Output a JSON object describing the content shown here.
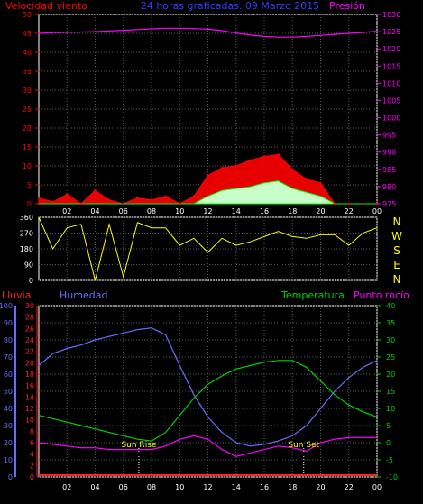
{
  "chart_data": [
    {
      "type": "line",
      "title": "24 horas graficadas. 09 Marzo 2015",
      "left_axis_label": "Velocidad viento",
      "right_axis_label": "Presión",
      "left_ticks": [
        "0",
        "5",
        "10",
        "15",
        "20",
        "25",
        "30",
        "35",
        "40",
        "45",
        "50"
      ],
      "right_ticks": [
        "975",
        "980",
        "985",
        "990",
        "995",
        "1000",
        "1005",
        "1010",
        "1015",
        "1020",
        "1025",
        "1030"
      ],
      "x_ticks": [
        "02",
        "04",
        "06",
        "08",
        "10",
        "12",
        "14",
        "16",
        "18",
        "20",
        "22",
        "00"
      ],
      "left_ylim": [
        0,
        50
      ],
      "right_ylim": [
        975,
        1030
      ],
      "pressure": {
        "x": [
          0,
          1,
          2,
          3,
          4,
          5,
          6,
          7,
          8,
          9,
          10,
          11,
          12,
          13,
          14,
          15,
          16,
          17,
          18,
          19,
          20,
          21,
          22,
          23,
          24
        ],
        "values": [
          1024.5,
          1024.7,
          1024.8,
          1024.9,
          1025.0,
          1025.2,
          1025.4,
          1025.6,
          1025.8,
          1026.0,
          1026.0,
          1025.9,
          1025.7,
          1025.3,
          1024.6,
          1024.0,
          1023.6,
          1023.4,
          1023.4,
          1023.6,
          1023.9,
          1024.2,
          1024.5,
          1024.8,
          1025.1
        ]
      },
      "gust": {
        "x": [
          0,
          1,
          2,
          3,
          4,
          5,
          6,
          7,
          8,
          9,
          10,
          11,
          12,
          13,
          14,
          15,
          16,
          17,
          18,
          19,
          20,
          21,
          22,
          23,
          24
        ],
        "values": [
          1.5,
          0.5,
          2.5,
          0,
          3.5,
          1.0,
          0,
          1.5,
          1.0,
          2.0,
          0,
          2.0,
          7.5,
          9.5,
          10.0,
          11.5,
          12.5,
          13.0,
          9.0,
          6.5,
          5.5,
          0,
          0,
          0,
          0
        ]
      },
      "wind": {
        "x": [
          0,
          1,
          2,
          3,
          4,
          5,
          6,
          7,
          8,
          9,
          10,
          11,
          12,
          13,
          14,
          15,
          16,
          17,
          18,
          19,
          20,
          21,
          22,
          23,
          24
        ],
        "values": [
          0,
          0,
          0,
          0,
          0,
          0,
          0,
          0,
          0,
          0,
          0,
          0,
          2.0,
          3.5,
          4.0,
          4.5,
          5.5,
          6.0,
          4.0,
          3.0,
          2.0,
          0,
          0,
          0,
          0
        ]
      }
    },
    {
      "type": "line",
      "direction_ticks": [
        "360",
        "270",
        "180",
        "90",
        "0"
      ],
      "compass_labels": [
        "N",
        "W",
        "S",
        "E",
        "N"
      ],
      "ylim": [
        0,
        360
      ],
      "direction": {
        "x": [
          0,
          1,
          2,
          3,
          4,
          5,
          6,
          7,
          8,
          9,
          10,
          11,
          12,
          13,
          14,
          15,
          16,
          17,
          18,
          19,
          20,
          21,
          22,
          23,
          24
        ],
        "values": [
          360,
          180,
          300,
          320,
          0,
          320,
          20,
          330,
          300,
          300,
          200,
          240,
          160,
          240,
          200,
          220,
          250,
          280,
          250,
          240,
          260,
          260,
          200,
          270,
          300
        ]
      }
    },
    {
      "type": "line",
      "labels": {
        "rain": "Lluvia",
        "humidity": "Humedad",
        "temperature": "Temperatura",
        "dew_point": "Punto rocío"
      },
      "humidity_ticks": [
        "0",
        "10",
        "20",
        "30",
        "40",
        "50",
        "60",
        "70",
        "80",
        "90",
        "100"
      ],
      "rain_ticks": [
        "0",
        "2",
        "4",
        "6",
        "8",
        "10",
        "12",
        "14",
        "16",
        "18",
        "20",
        "22",
        "24",
        "26",
        "28",
        "30"
      ],
      "temp_ticks": [
        "-10",
        "-5",
        "0",
        "5",
        "10",
        "15",
        "20",
        "25",
        "30",
        "35",
        "40"
      ],
      "humidity_ylim": [
        0,
        100
      ],
      "temp_ylim": [
        -10,
        40
      ],
      "annotations": [
        {
          "text": "Sun Rise",
          "x": 7.1
        },
        {
          "text": "Sun Set",
          "x": 18.8
        }
      ],
      "humidity": {
        "x": [
          0,
          1,
          2,
          3,
          4,
          5,
          6,
          7,
          8,
          9,
          10,
          11,
          12,
          13,
          14,
          15,
          16,
          17,
          18,
          19,
          20,
          21,
          22,
          23,
          24
        ],
        "values": [
          65,
          72,
          75,
          77,
          80,
          82,
          84,
          86,
          87,
          83,
          65,
          48,
          35,
          26,
          20,
          18,
          19,
          21,
          24,
          30,
          40,
          50,
          58,
          64,
          68
        ]
      },
      "temperature": {
        "x": [
          0,
          1,
          2,
          3,
          4,
          5,
          6,
          7,
          8,
          9,
          10,
          11,
          12,
          13,
          14,
          15,
          16,
          17,
          18,
          19,
          20,
          21,
          22,
          23,
          24
        ],
        "values": [
          8,
          7,
          6,
          5,
          4,
          3,
          2,
          1,
          0.5,
          3,
          8,
          13,
          17,
          19.5,
          21.5,
          22.5,
          23.5,
          24,
          24,
          22,
          18,
          14,
          11,
          9,
          7.5
        ]
      },
      "dew_point": {
        "x": [
          0,
          1,
          2,
          3,
          4,
          5,
          6,
          7,
          8,
          9,
          10,
          11,
          12,
          13,
          14,
          15,
          16,
          17,
          18,
          19,
          20,
          21,
          22,
          23,
          24
        ],
        "values": [
          0,
          -0.5,
          -1,
          -1.5,
          -1.5,
          -2,
          -2,
          -2,
          -2,
          -1,
          1,
          2,
          1,
          -2,
          -4,
          -3,
          -2,
          -1,
          -1.5,
          -2.5,
          0,
          1,
          1.5,
          1.5,
          1.5
        ]
      },
      "rain": {
        "x": [
          0,
          24
        ],
        "values": [
          0,
          0
        ]
      }
    }
  ],
  "colors": {
    "background": "#000000",
    "plot_border": "#ffffff",
    "grid": "#5a5a5a",
    "wind_axis": "#ff0000",
    "gust": "#ff0000",
    "wind": "#00ff00",
    "wind_fill": "#c8ffc8",
    "pressure": "#ff00ff",
    "direction": "#ffff00",
    "title": "#3a3aff",
    "humidity": "#6b6bff",
    "temperature": "#00d000",
    "dew_point": "#ff00ff",
    "rain": "#ff2020",
    "sun_marker": "#ffff00",
    "white": "#ffffff"
  }
}
